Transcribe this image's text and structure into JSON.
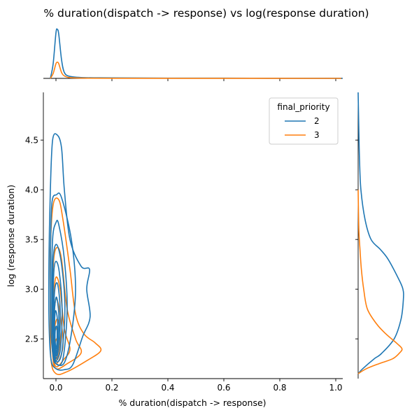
{
  "chart_data": {
    "type": "kde-joint",
    "title": "% duration(dispatch -> response) vs log(response duration)",
    "xlabel": "% duration(dispatch -> response)",
    "ylabel": "log (response duration)",
    "xlim": [
      -0.045,
      1.025
    ],
    "ylim": [
      2.1,
      4.98
    ],
    "xticks": [
      {
        "v": 0.0,
        "label": "0.0"
      },
      {
        "v": 0.2,
        "label": "0.2"
      },
      {
        "v": 0.4,
        "label": "0.4"
      },
      {
        "v": 0.6,
        "label": "0.6"
      },
      {
        "v": 0.8,
        "label": "0.8"
      },
      {
        "v": 1.0,
        "label": "1.0"
      }
    ],
    "yticks": [
      {
        "v": 2.5,
        "label": "2.5"
      },
      {
        "v": 3.0,
        "label": "3.0"
      },
      {
        "v": 3.5,
        "label": "3.5"
      },
      {
        "v": 4.0,
        "label": "4.0"
      },
      {
        "v": 4.5,
        "label": "4.5"
      }
    ],
    "legend": {
      "title": "final_priority",
      "location": "upper right"
    },
    "series": [
      {
        "name": "2",
        "color": "#1f77b4",
        "contours": [
          [
            [
              0.0,
              2.2
            ],
            [
              0.03,
              2.19
            ],
            [
              0.06,
              2.24
            ],
            [
              0.095,
              2.52
            ],
            [
              0.122,
              2.72
            ],
            [
              0.11,
              3.0
            ],
            [
              0.12,
              3.2
            ],
            [
              0.09,
              3.23
            ],
            [
              0.05,
              3.5
            ],
            [
              0.03,
              4.0
            ],
            [
              0.02,
              4.42
            ],
            [
              0.005,
              4.55
            ],
            [
              -0.012,
              4.5
            ],
            [
              -0.02,
              4.0
            ],
            [
              -0.025,
              3.3
            ],
            [
              -0.025,
              2.7
            ],
            [
              -0.018,
              2.3
            ]
          ],
          [
            [
              0.0,
              2.25
            ],
            [
              0.03,
              2.26
            ],
            [
              0.055,
              2.55
            ],
            [
              0.07,
              3.0
            ],
            [
              0.055,
              3.5
            ],
            [
              0.02,
              3.92
            ],
            [
              0.002,
              3.95
            ],
            [
              -0.015,
              3.85
            ],
            [
              -0.02,
              3.2
            ],
            [
              -0.018,
              2.6
            ],
            [
              -0.01,
              2.32
            ]
          ],
          [
            [
              0.0,
              2.25
            ],
            [
              0.025,
              2.3
            ],
            [
              0.04,
              2.8
            ],
            [
              0.03,
              3.3
            ],
            [
              0.01,
              3.65
            ],
            [
              0.0,
              3.67
            ],
            [
              -0.012,
              3.5
            ],
            [
              -0.015,
              2.9
            ],
            [
              -0.01,
              2.4
            ]
          ],
          [
            [
              0.0,
              2.27
            ],
            [
              0.02,
              2.35
            ],
            [
              0.032,
              2.8
            ],
            [
              0.02,
              3.25
            ],
            [
              0.002,
              3.45
            ],
            [
              -0.01,
              3.3
            ],
            [
              -0.012,
              2.8
            ],
            [
              -0.008,
              2.38
            ]
          ],
          [
            [
              0.0,
              2.28
            ],
            [
              0.016,
              2.4
            ],
            [
              0.022,
              2.8
            ],
            [
              0.012,
              3.17
            ],
            [
              0.0,
              3.28
            ],
            [
              -0.008,
              3.15
            ],
            [
              -0.01,
              2.7
            ],
            [
              -0.006,
              2.4
            ]
          ],
          [
            [
              0.0,
              2.3
            ],
            [
              0.012,
              2.45
            ],
            [
              0.015,
              2.8
            ],
            [
              0.006,
              3.05
            ],
            [
              -0.004,
              3.0
            ],
            [
              -0.008,
              2.7
            ],
            [
              -0.005,
              2.42
            ]
          ],
          [
            [
              0.0,
              2.33
            ],
            [
              0.009,
              2.5
            ],
            [
              0.01,
              2.75
            ],
            [
              0.002,
              2.92
            ],
            [
              -0.005,
              2.8
            ],
            [
              -0.006,
              2.55
            ]
          ],
          [
            [
              0.0,
              2.36
            ],
            [
              0.006,
              2.5
            ],
            [
              0.005,
              2.7
            ],
            [
              -0.002,
              2.78
            ],
            [
              -0.005,
              2.6
            ]
          ],
          [
            [
              0.001,
              2.4
            ],
            [
              0.004,
              2.5
            ],
            [
              0.003,
              2.62
            ],
            [
              -0.002,
              2.6
            ],
            [
              -0.003,
              2.48
            ]
          ]
        ],
        "marginal_x": [
          [
            -0.02,
            0.0
          ],
          [
            -0.01,
            0.3
          ],
          [
            0.0,
            0.93
          ],
          [
            0.005,
            1.0
          ],
          [
            0.01,
            0.9
          ],
          [
            0.02,
            0.38
          ],
          [
            0.03,
            0.12
          ],
          [
            0.05,
            0.04
          ],
          [
            0.1,
            0.015
          ],
          [
            0.2,
            0.01
          ],
          [
            0.4,
            0.005
          ],
          [
            0.6,
            0.004
          ],
          [
            0.8,
            0.003
          ],
          [
            1.0,
            0.002
          ],
          [
            1.02,
            0.0
          ]
        ],
        "marginal_y": [
          [
            2.15,
            0.0
          ],
          [
            2.2,
            0.1
          ],
          [
            2.3,
            0.35
          ],
          [
            2.35,
            0.5
          ],
          [
            2.5,
            0.78
          ],
          [
            2.7,
            0.93
          ],
          [
            2.9,
            0.98
          ],
          [
            3.0,
            0.97
          ],
          [
            3.1,
            0.88
          ],
          [
            3.3,
            0.65
          ],
          [
            3.4,
            0.48
          ],
          [
            3.5,
            0.28
          ],
          [
            3.7,
            0.15
          ],
          [
            4.0,
            0.06
          ],
          [
            4.3,
            0.03
          ],
          [
            4.6,
            0.015
          ],
          [
            4.98,
            0.0
          ]
        ]
      },
      {
        "name": "3",
        "color": "#ff7f0e",
        "contours": [
          [
            [
              0.0,
              2.15
            ],
            [
              0.04,
              2.17
            ],
            [
              0.11,
              2.28
            ],
            [
              0.16,
              2.38
            ],
            [
              0.14,
              2.46
            ],
            [
              0.1,
              2.55
            ],
            [
              0.07,
              2.75
            ],
            [
              0.05,
              3.2
            ],
            [
              0.025,
              3.7
            ],
            [
              0.01,
              3.9
            ],
            [
              -0.01,
              3.85
            ],
            [
              -0.02,
              3.4
            ],
            [
              -0.02,
              2.8
            ],
            [
              -0.018,
              2.3
            ]
          ],
          [
            [
              0.0,
              2.2
            ],
            [
              0.04,
              2.25
            ],
            [
              0.09,
              2.36
            ],
            [
              0.07,
              2.5
            ],
            [
              0.04,
              2.8
            ],
            [
              0.02,
              3.3
            ],
            [
              0.005,
              3.42
            ],
            [
              -0.008,
              3.3
            ],
            [
              -0.015,
              2.8
            ],
            [
              -0.012,
              2.35
            ]
          ],
          [
            [
              0.0,
              2.22
            ],
            [
              0.03,
              2.3
            ],
            [
              0.05,
              2.4
            ],
            [
              0.03,
              2.6
            ],
            [
              0.015,
              3.0
            ],
            [
              0.0,
              3.12
            ],
            [
              -0.008,
              2.9
            ],
            [
              -0.01,
              2.4
            ]
          ],
          [
            [
              0.0,
              2.25
            ],
            [
              0.02,
              2.35
            ],
            [
              0.025,
              2.5
            ],
            [
              0.012,
              2.8
            ],
            [
              0.0,
              2.9
            ],
            [
              -0.007,
              2.7
            ],
            [
              -0.008,
              2.4
            ]
          ],
          [
            [
              0.0,
              2.28
            ],
            [
              0.013,
              2.38
            ],
            [
              0.015,
              2.55
            ],
            [
              0.005,
              2.7
            ],
            [
              -0.005,
              2.6
            ],
            [
              -0.006,
              2.4
            ]
          ],
          [
            [
              0.0,
              2.3
            ],
            [
              0.008,
              2.4
            ],
            [
              0.008,
              2.55
            ],
            [
              -0.002,
              2.6
            ],
            [
              -0.004,
              2.45
            ]
          ],
          [
            [
              0.001,
              2.33
            ],
            [
              0.005,
              2.42
            ],
            [
              0.003,
              2.5
            ],
            [
              -0.003,
              2.45
            ]
          ]
        ],
        "marginal_x": [
          [
            -0.02,
            0.0
          ],
          [
            -0.01,
            0.1
          ],
          [
            0.0,
            0.3
          ],
          [
            0.005,
            0.33
          ],
          [
            0.01,
            0.3
          ],
          [
            0.02,
            0.12
          ],
          [
            0.03,
            0.05
          ],
          [
            0.05,
            0.015
          ],
          [
            0.1,
            0.006
          ],
          [
            0.2,
            0.003
          ],
          [
            0.5,
            0.001
          ],
          [
            1.02,
            0.0
          ]
        ],
        "marginal_y": [
          [
            2.15,
            0.0
          ],
          [
            2.2,
            0.18
          ],
          [
            2.25,
            0.45
          ],
          [
            2.3,
            0.75
          ],
          [
            2.36,
            0.9
          ],
          [
            2.4,
            0.95
          ],
          [
            2.45,
            0.85
          ],
          [
            2.55,
            0.6
          ],
          [
            2.65,
            0.4
          ],
          [
            2.8,
            0.2
          ],
          [
            3.0,
            0.12
          ],
          [
            3.2,
            0.07
          ],
          [
            3.4,
            0.04
          ],
          [
            3.6,
            0.015
          ],
          [
            4.0,
            0.0
          ]
        ]
      }
    ]
  }
}
